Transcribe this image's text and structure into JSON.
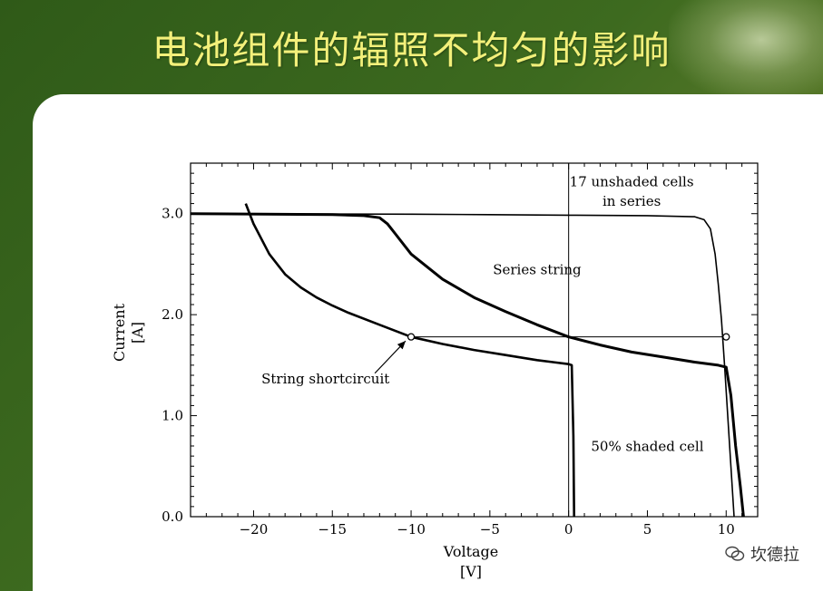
{
  "slide": {
    "title": "电池组件的辐照不均匀的影响",
    "watermark": "坎德拉"
  },
  "chart_data": {
    "type": "line",
    "xlabel": "Voltage\n[V]",
    "ylabel": "Current\n[A]",
    "xlim": [
      -24,
      12
    ],
    "ylim": [
      0,
      3.5
    ],
    "x_ticks": [
      -20,
      -15,
      -10,
      -5,
      0,
      5,
      10
    ],
    "x_tick_labels": [
      "−20",
      "−15",
      "−10",
      "−5",
      "0",
      "5",
      "10"
    ],
    "y_ticks": [
      0,
      1,
      2,
      3
    ],
    "y_tick_labels": [
      "0.0",
      "1.0",
      "2.0",
      "3.0"
    ],
    "grid": false,
    "series": [
      {
        "name": "17 unshaded cells in series",
        "x": [
          -24,
          -10,
          -5,
          0,
          5,
          8,
          8.6,
          9.0,
          9.3,
          9.5,
          9.7,
          9.9,
          10.1,
          10.3,
          10.5
        ],
        "y": [
          3.0,
          2.995,
          2.99,
          2.985,
          2.98,
          2.97,
          2.94,
          2.85,
          2.6,
          2.3,
          1.95,
          1.5,
          1.0,
          0.5,
          0.0
        ]
      },
      {
        "name": "Series string",
        "x": [
          -24,
          -15,
          -13,
          -12,
          -11.5,
          -11,
          -10,
          -8,
          -6,
          -4,
          -2,
          0,
          2,
          4,
          6,
          8,
          9.5,
          10,
          10.3,
          10.6,
          10.9,
          11.1
        ],
        "y": [
          3.0,
          2.99,
          2.98,
          2.96,
          2.9,
          2.8,
          2.6,
          2.35,
          2.17,
          2.03,
          1.9,
          1.78,
          1.7,
          1.63,
          1.58,
          1.53,
          1.5,
          1.48,
          1.2,
          0.7,
          0.3,
          0.0
        ]
      },
      {
        "name": "50% shaded cell",
        "x": [
          -20.5,
          -20,
          -19,
          -18,
          -17,
          -16,
          -15,
          -14,
          -12,
          -10,
          -8,
          -6,
          -4,
          -2,
          -1,
          0,
          0.2,
          0.3,
          0.35
        ],
        "y": [
          3.1,
          2.9,
          2.6,
          2.4,
          2.27,
          2.17,
          2.09,
          2.02,
          1.9,
          1.78,
          1.71,
          1.65,
          1.6,
          1.55,
          1.53,
          1.51,
          1.5,
          0.8,
          0.0
        ]
      }
    ],
    "reference_line": {
      "y": 1.78,
      "x_from": -10,
      "x_to": 10
    },
    "markers": [
      {
        "x": -10,
        "y": 1.78
      },
      {
        "x": 10,
        "y": 1.78
      }
    ],
    "vertical_line_x": 0,
    "annotations": [
      {
        "text": "17 unshaded cells",
        "x": 4,
        "y": 3.27
      },
      {
        "text": "in series",
        "x": 4,
        "y": 3.08
      },
      {
        "text": "Series string",
        "x": -2,
        "y": 2.4
      },
      {
        "text": "String shortcircuit",
        "x": -19.5,
        "y": 1.32
      },
      {
        "text": "50% shaded cell",
        "x": 5,
        "y": 0.65
      }
    ]
  }
}
